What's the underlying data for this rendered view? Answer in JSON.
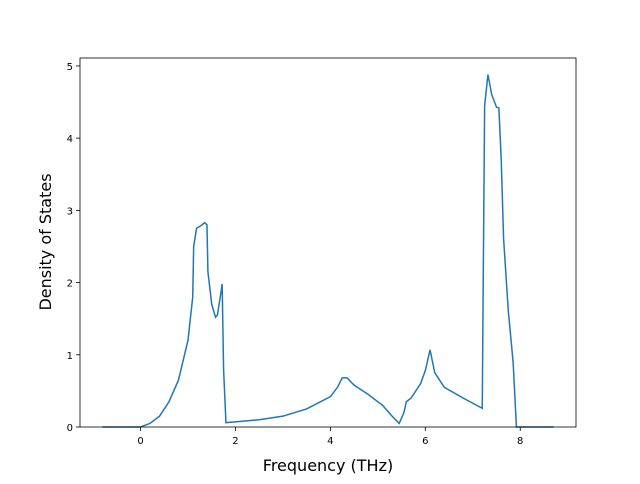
{
  "chart_data": {
    "type": "line",
    "xlabel": "Frequency (THz)",
    "ylabel": "Density of States",
    "x": [
      -0.8,
      0,
      0.2,
      0.4,
      0.6,
      0.8,
      1.0,
      1.05,
      1.1,
      1.12,
      1.18,
      1.3,
      1.35,
      1.4,
      1.42,
      1.5,
      1.58,
      1.62,
      1.68,
      1.72,
      1.75,
      1.8,
      2.5,
      3.0,
      3.5,
      4.0,
      4.15,
      4.25,
      4.35,
      4.5,
      4.8,
      5.1,
      5.3,
      5.45,
      5.55,
      5.6,
      5.7,
      5.9,
      6.0,
      6.1,
      6.2,
      6.4,
      6.8,
      7.2,
      7.22,
      7.25,
      7.32,
      7.4,
      7.5,
      7.55,
      7.6,
      7.65,
      7.75,
      7.85,
      7.92,
      8.0,
      8.7
    ],
    "series": [
      {
        "color": "#1f77b4",
        "values": [
          0,
          0,
          0.05,
          0.15,
          0.35,
          0.65,
          1.2,
          1.5,
          1.8,
          2.5,
          2.75,
          2.8,
          2.83,
          2.8,
          2.15,
          1.7,
          1.52,
          1.55,
          1.8,
          1.98,
          0.8,
          0.06,
          0.1,
          0.15,
          0.25,
          0.42,
          0.55,
          0.68,
          0.68,
          0.58,
          0.45,
          0.3,
          0.15,
          0.05,
          0.2,
          0.35,
          0.4,
          0.6,
          0.78,
          1.07,
          0.75,
          0.55,
          0.4,
          0.26,
          2.0,
          4.45,
          4.88,
          4.6,
          4.43,
          4.42,
          3.7,
          2.6,
          1.6,
          0.9,
          0,
          0,
          0
        ]
      }
    ],
    "xlim": [
      -1.275,
      9.175
    ],
    "ylim": [
      0,
      5.11
    ],
    "xticks": [
      0,
      2,
      4,
      6,
      8
    ],
    "yticks": [
      0,
      1,
      2,
      3,
      4,
      5
    ]
  }
}
